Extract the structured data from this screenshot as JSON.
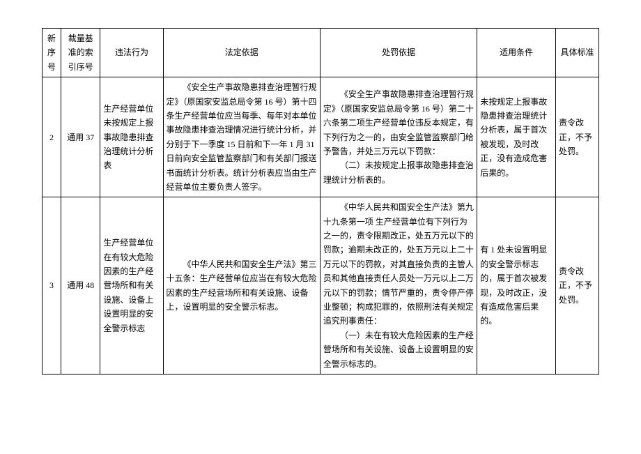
{
  "table": {
    "headers": {
      "seq": "新序号",
      "idx": "裁量基准的索引序号",
      "behavior": "违法行为",
      "legal": "法定依据",
      "penalty": "处罚依据",
      "cond": "适用条件",
      "std": "具体标准"
    },
    "rows": [
      {
        "seq": "2",
        "idx": "通用 37",
        "behavior": "生产经营单位未按规定上报事故隐患排查治理统计分析表",
        "legal_p1": "《安全生产事故隐患排查治理暂行规定》（原国家安监总局令第 16 号）第十四条生产经营单位应当每季、每年对本单位事故隐患排查治理情况进行统计分析，并分别于下一季度 15 日前和下一年 1 月 31 日前向安全监管监察部门和有关部门报送书面统计分析表。统计分析表应当由生产经营单位主要负责人签字。",
        "penalty_p1": "《安全生产事故隐患排查治理暂行规定》（原国家安监总局令第 16 号）第二十六条第二项生产经营单位违反本规定，有下列行为之一的，由安全监管监察部门给予警告，并处三万元以下罚款：",
        "penalty_p2": "（二）未按规定上报事故隐患排查治理统计分析表的。",
        "cond": "未按规定上报事故隐患排查治理统计分析表，属于首次被发现，及时改正，没有造成危害后果的。",
        "std": "责令改正，不予处罚。"
      },
      {
        "seq": "3",
        "idx": "通用 48",
        "behavior": "生产经营单位在有较大危险因素的生产经营场所和有关设施、设备上设置明显的安全警示标志",
        "legal_p1": "《中华人民共和国安全生产法》第三十五条：生产经营单位应当在有较大危险因素的生产经营场所和有关设施、设备上，设置明显的安全警示标志。",
        "penalty_p1": "《中华人民共和国安全生产法》第九十九条第一项 生产经营单位有下列行为之一的，责令限期改正，处五万元以下的罚款；逾期未改正的，处五万元以上二十万元以下的罚款，对其直接负责的主管人员和其他直接责任人员处一万元以上二万元以下的罚款；情节严重的，责令停产停业整顿；构成犯罪的，依照刑法有关规定追究刑事责任：",
        "penalty_p2": "（一）未在有较大危险因素的生产经营场所和有关设施、设备上设置明显的安全警示标志的。",
        "cond": "有 1 处未设置明显的安全警示标志的，属于首次被发现，及时改正，没有造成危害后果的。",
        "std": "责令改正，不予处罚。"
      }
    ]
  }
}
